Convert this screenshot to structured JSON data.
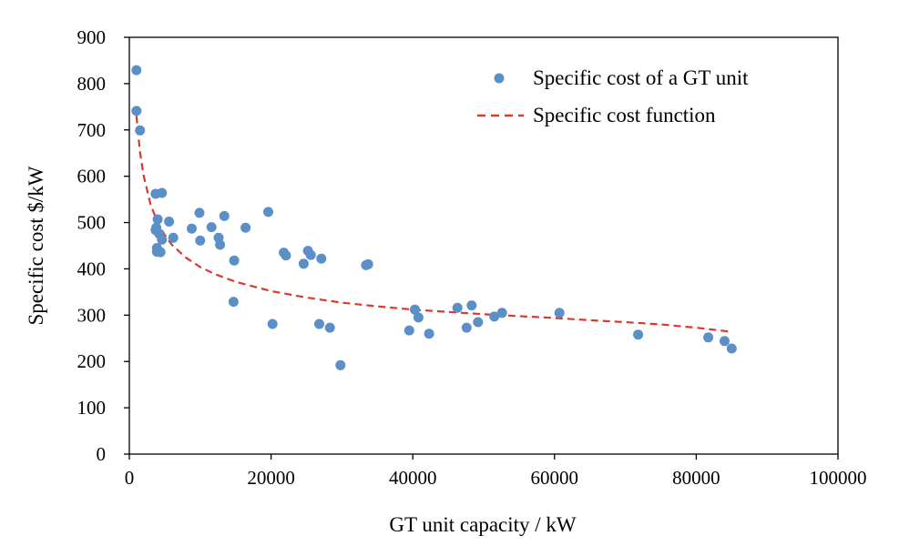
{
  "chart_data": {
    "type": "scatter",
    "title": "",
    "xlabel": "GT unit capacity / kW",
    "ylabel": "Specific cost $/kW",
    "xlim": [
      0,
      100000
    ],
    "ylim": [
      0,
      900
    ],
    "x_ticks": [
      0,
      20000,
      40000,
      60000,
      80000,
      100000
    ],
    "y_ticks": [
      0,
      100,
      200,
      300,
      400,
      500,
      600,
      700,
      800,
      900
    ],
    "x_tick_labels": [
      "0",
      "20000",
      "40000",
      "60000",
      "80000",
      "100000"
    ],
    "y_tick_labels": [
      "0",
      "100",
      "200",
      "300",
      "400",
      "500",
      "600",
      "700",
      "800",
      "900"
    ],
    "grid": false,
    "legend_position": "top-right",
    "colors": {
      "points": "#5b8fc7",
      "curve": "#d83a2c",
      "axis": "#000000"
    },
    "series": [
      {
        "name": "Specific cost of a GT unit",
        "kind": "scatter",
        "points": [
          [
            1000,
            829
          ],
          [
            1000,
            741
          ],
          [
            1500,
            699
          ],
          [
            3700,
            562
          ],
          [
            4600,
            564
          ],
          [
            4000,
            507
          ],
          [
            3800,
            489
          ],
          [
            3700,
            484
          ],
          [
            4200,
            476
          ],
          [
            4600,
            463
          ],
          [
            3900,
            445
          ],
          [
            3900,
            437
          ],
          [
            4400,
            436
          ],
          [
            5600,
            502
          ],
          [
            6200,
            467
          ],
          [
            8800,
            487
          ],
          [
            9900,
            521
          ],
          [
            10000,
            461
          ],
          [
            11600,
            490
          ],
          [
            12600,
            467
          ],
          [
            12800,
            452
          ],
          [
            13400,
            514
          ],
          [
            14800,
            418
          ],
          [
            14700,
            329
          ],
          [
            16400,
            489
          ],
          [
            19600,
            523
          ],
          [
            20200,
            281
          ],
          [
            21800,
            435
          ],
          [
            22100,
            429
          ],
          [
            24600,
            411
          ],
          [
            25200,
            439
          ],
          [
            25600,
            430
          ],
          [
            27100,
            422
          ],
          [
            26800,
            281
          ],
          [
            28300,
            273
          ],
          [
            29800,
            192
          ],
          [
            33400,
            408
          ],
          [
            33700,
            410
          ],
          [
            39500,
            267
          ],
          [
            40300,
            312
          ],
          [
            40800,
            295
          ],
          [
            42300,
            260
          ],
          [
            46300,
            316
          ],
          [
            47600,
            273
          ],
          [
            48300,
            321
          ],
          [
            49200,
            285
          ],
          [
            51500,
            297
          ],
          [
            52600,
            305
          ],
          [
            60700,
            305
          ],
          [
            71800,
            258
          ],
          [
            81700,
            252
          ],
          [
            84000,
            244
          ],
          [
            85000,
            228
          ]
        ]
      },
      {
        "name": "Specific cost function",
        "kind": "dashed-line",
        "x": [
          1000,
          1500,
          2000,
          3000,
          4000,
          5000,
          6000,
          8000,
          10000,
          12000,
          15000,
          20000,
          25000,
          30000,
          35000,
          40000,
          45000,
          50000,
          55000,
          60000,
          65000,
          70000,
          75000,
          80000,
          85000
        ],
        "y": [
          730,
          652,
          602,
          539,
          500,
          473,
          452,
          424,
          404,
          389,
          372,
          352,
          338,
          327,
          319,
          312,
          307,
          302,
          298,
          294,
          289,
          285,
          280,
          273,
          264
        ]
      }
    ]
  }
}
